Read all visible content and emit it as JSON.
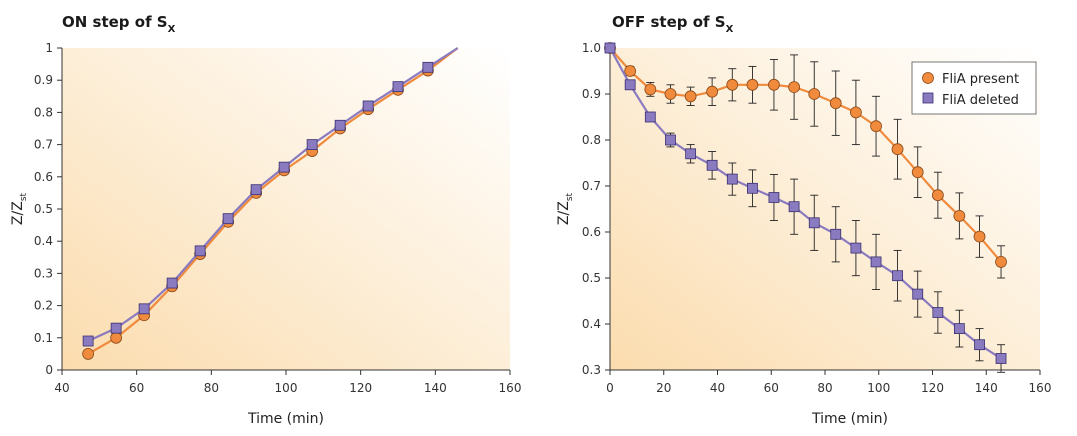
{
  "chart_data": [
    {
      "type": "line",
      "title": "ON step of S",
      "title_sub": "X",
      "xlabel": "Time (min)",
      "ylabel": "Z/Z",
      "ylabel_sub": "st",
      "xlim": [
        40,
        160
      ],
      "ylim": [
        0,
        1
      ],
      "xticks": [
        "40",
        "60",
        "80",
        "100",
        "120",
        "140",
        "160"
      ],
      "yticks": [
        "0",
        "0.1",
        "0.2",
        "0.3",
        "0.4",
        "0.5",
        "0.6",
        "0.7",
        "0.8",
        "0.9",
        "1"
      ],
      "background": "gradient-orange",
      "series": [
        {
          "marker": "circle",
          "color": "#f08a3c",
          "x": [
            47,
            54.5,
            62,
            69.5,
            77,
            84.5,
            92,
            99.5,
            107,
            114.5,
            122,
            130,
            138
          ],
          "y": [
            0.05,
            0.1,
            0.17,
            0.26,
            0.36,
            0.46,
            0.55,
            0.62,
            0.68,
            0.75,
            0.81,
            0.87,
            0.93
          ],
          "end_x": 146,
          "end_y": 1.0
        },
        {
          "marker": "square",
          "color": "#8a7ac0",
          "x": [
            47,
            54.5,
            62,
            69.5,
            77,
            84.5,
            92,
            99.5,
            107,
            114.5,
            122,
            130,
            138
          ],
          "y": [
            0.09,
            0.13,
            0.19,
            0.27,
            0.37,
            0.47,
            0.56,
            0.63,
            0.7,
            0.76,
            0.82,
            0.88,
            0.94
          ],
          "end_x": 146,
          "end_y": 1.0
        }
      ]
    },
    {
      "type": "line",
      "title": "OFF step of S",
      "title_sub": "X",
      "xlabel": "Time (min)",
      "ylabel": "Z/Z",
      "ylabel_sub": "st",
      "xlim": [
        0,
        160
      ],
      "ylim": [
        0.3,
        1.0
      ],
      "xticks": [
        "0",
        "20",
        "40",
        "60",
        "80",
        "100",
        "120",
        "140",
        "160"
      ],
      "yticks": [
        "0.3",
        "0.4",
        "0.5",
        "0.6",
        "0.7",
        "0.8",
        "0.9",
        "1.0"
      ],
      "legend_position": "top-right",
      "background": "gradient-orange",
      "series": [
        {
          "name": "FliA present",
          "marker": "circle",
          "color": "#f08a3c",
          "x": [
            0,
            7.5,
            15,
            22.5,
            30,
            38,
            45.5,
            53,
            61,
            68.5,
            76,
            84,
            91.5,
            99,
            107,
            114.5,
            122,
            130,
            137.5,
            145.5
          ],
          "y": [
            1.0,
            0.95,
            0.91,
            0.9,
            0.895,
            0.905,
            0.92,
            0.92,
            0.92,
            0.915,
            0.9,
            0.88,
            0.86,
            0.83,
            0.78,
            0.73,
            0.68,
            0.635,
            0.59,
            0.535
          ],
          "err": [
            0,
            0.01,
            0.015,
            0.02,
            0.02,
            0.03,
            0.035,
            0.04,
            0.055,
            0.07,
            0.07,
            0.07,
            0.07,
            0.065,
            0.065,
            0.055,
            0.05,
            0.05,
            0.045,
            0.035
          ]
        },
        {
          "name": "FliA deleted",
          "marker": "square",
          "color": "#8a7ac0",
          "x": [
            0,
            7.5,
            15,
            22.5,
            30,
            38,
            45.5,
            53,
            61,
            68.5,
            76,
            84,
            91.5,
            99,
            107,
            114.5,
            122,
            130,
            137.5,
            145.5
          ],
          "y": [
            1.0,
            0.92,
            0.85,
            0.8,
            0.77,
            0.745,
            0.715,
            0.695,
            0.675,
            0.655,
            0.62,
            0.595,
            0.565,
            0.535,
            0.505,
            0.465,
            0.425,
            0.39,
            0.355,
            0.325
          ],
          "err": [
            0,
            0.01,
            0.01,
            0.015,
            0.02,
            0.03,
            0.035,
            0.04,
            0.05,
            0.06,
            0.06,
            0.06,
            0.06,
            0.06,
            0.055,
            0.05,
            0.045,
            0.04,
            0.035,
            0.03
          ]
        }
      ]
    }
  ]
}
